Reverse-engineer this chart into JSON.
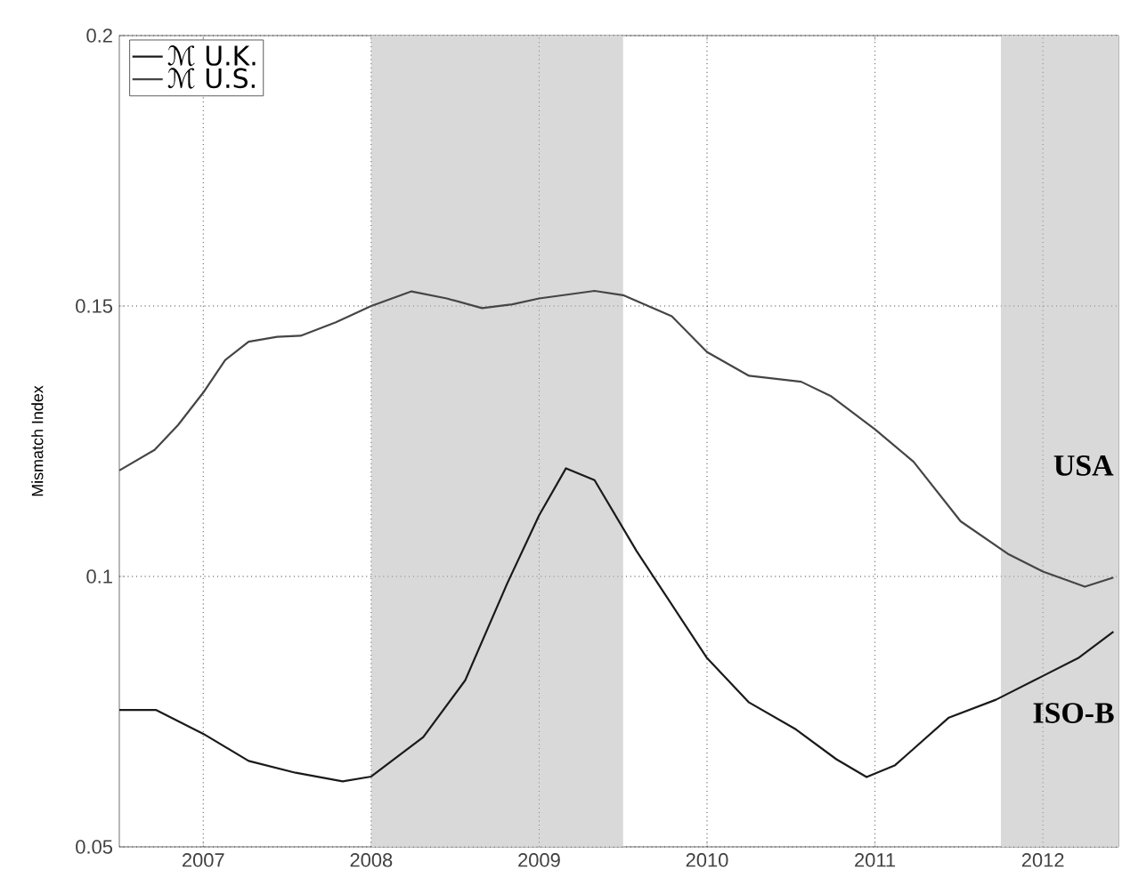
{
  "chart_data": {
    "type": "line",
    "ylabel": "Mismatch Index",
    "xlim": [
      2006.5,
      2012.45
    ],
    "ylim": [
      0.05,
      0.2
    ],
    "xticks": [
      2007,
      2008,
      2009,
      2010,
      2011,
      2012
    ],
    "yticks": [
      0.05,
      0.1,
      0.15,
      0.2
    ],
    "grid": true,
    "legend": "top left",
    "line_style": "solid",
    "bands": [
      {
        "axis": "x",
        "from": 2008,
        "to": 2009.5,
        "color": "#d9d9d9"
      },
      {
        "axis": "x",
        "from": 2011.75,
        "to": 2012.45,
        "color": "#d9d9d9"
      }
    ],
    "annotations": [
      "USA",
      "ISO-B"
    ],
    "series": [
      {
        "name": "ℳ U.K.",
        "color": "#1a1a1a",
        "x": [
          2006.5,
          2006.72,
          2007,
          2007.27,
          2007.55,
          2007.83,
          2008,
          2008.31,
          2008.56,
          2008.81,
          2009,
          2009.16,
          2009.33,
          2009.58,
          2010,
          2010.25,
          2010.53,
          2010.77,
          2010.95,
          2011.12,
          2011.44,
          2011.72,
          2012,
          2012.21,
          2012.42
        ],
        "values": [
          0.0753,
          0.0753,
          0.0709,
          0.0659,
          0.0637,
          0.0621,
          0.063,
          0.0703,
          0.0808,
          0.0987,
          0.1113,
          0.12,
          0.1178,
          0.1047,
          0.0849,
          0.0767,
          0.0717,
          0.0662,
          0.0629,
          0.0651,
          0.0739,
          0.0772,
          0.0816,
          0.0849,
          0.0898
        ]
      },
      {
        "name": "ℳ U.S.",
        "color": "#454545",
        "x": [
          2006.5,
          2006.71,
          2006.85,
          2007,
          2007.13,
          2007.27,
          2007.44,
          2007.58,
          2007.79,
          2008,
          2008.24,
          2008.45,
          2008.66,
          2008.84,
          2009,
          2009.33,
          2009.5,
          2009.79,
          2010,
          2010.25,
          2010.56,
          2010.74,
          2011,
          2011.23,
          2011.51,
          2011.79,
          2012,
          2012.25,
          2012.42
        ],
        "values": [
          0.1196,
          0.1234,
          0.128,
          0.134,
          0.14,
          0.1434,
          0.1443,
          0.1445,
          0.147,
          0.15,
          0.1527,
          0.1514,
          0.1496,
          0.1503,
          0.1514,
          0.1528,
          0.152,
          0.1481,
          0.1415,
          0.1371,
          0.136,
          0.1333,
          0.1272,
          0.1212,
          0.1102,
          0.1042,
          0.1009,
          0.0981,
          0.0998
        ]
      }
    ]
  }
}
